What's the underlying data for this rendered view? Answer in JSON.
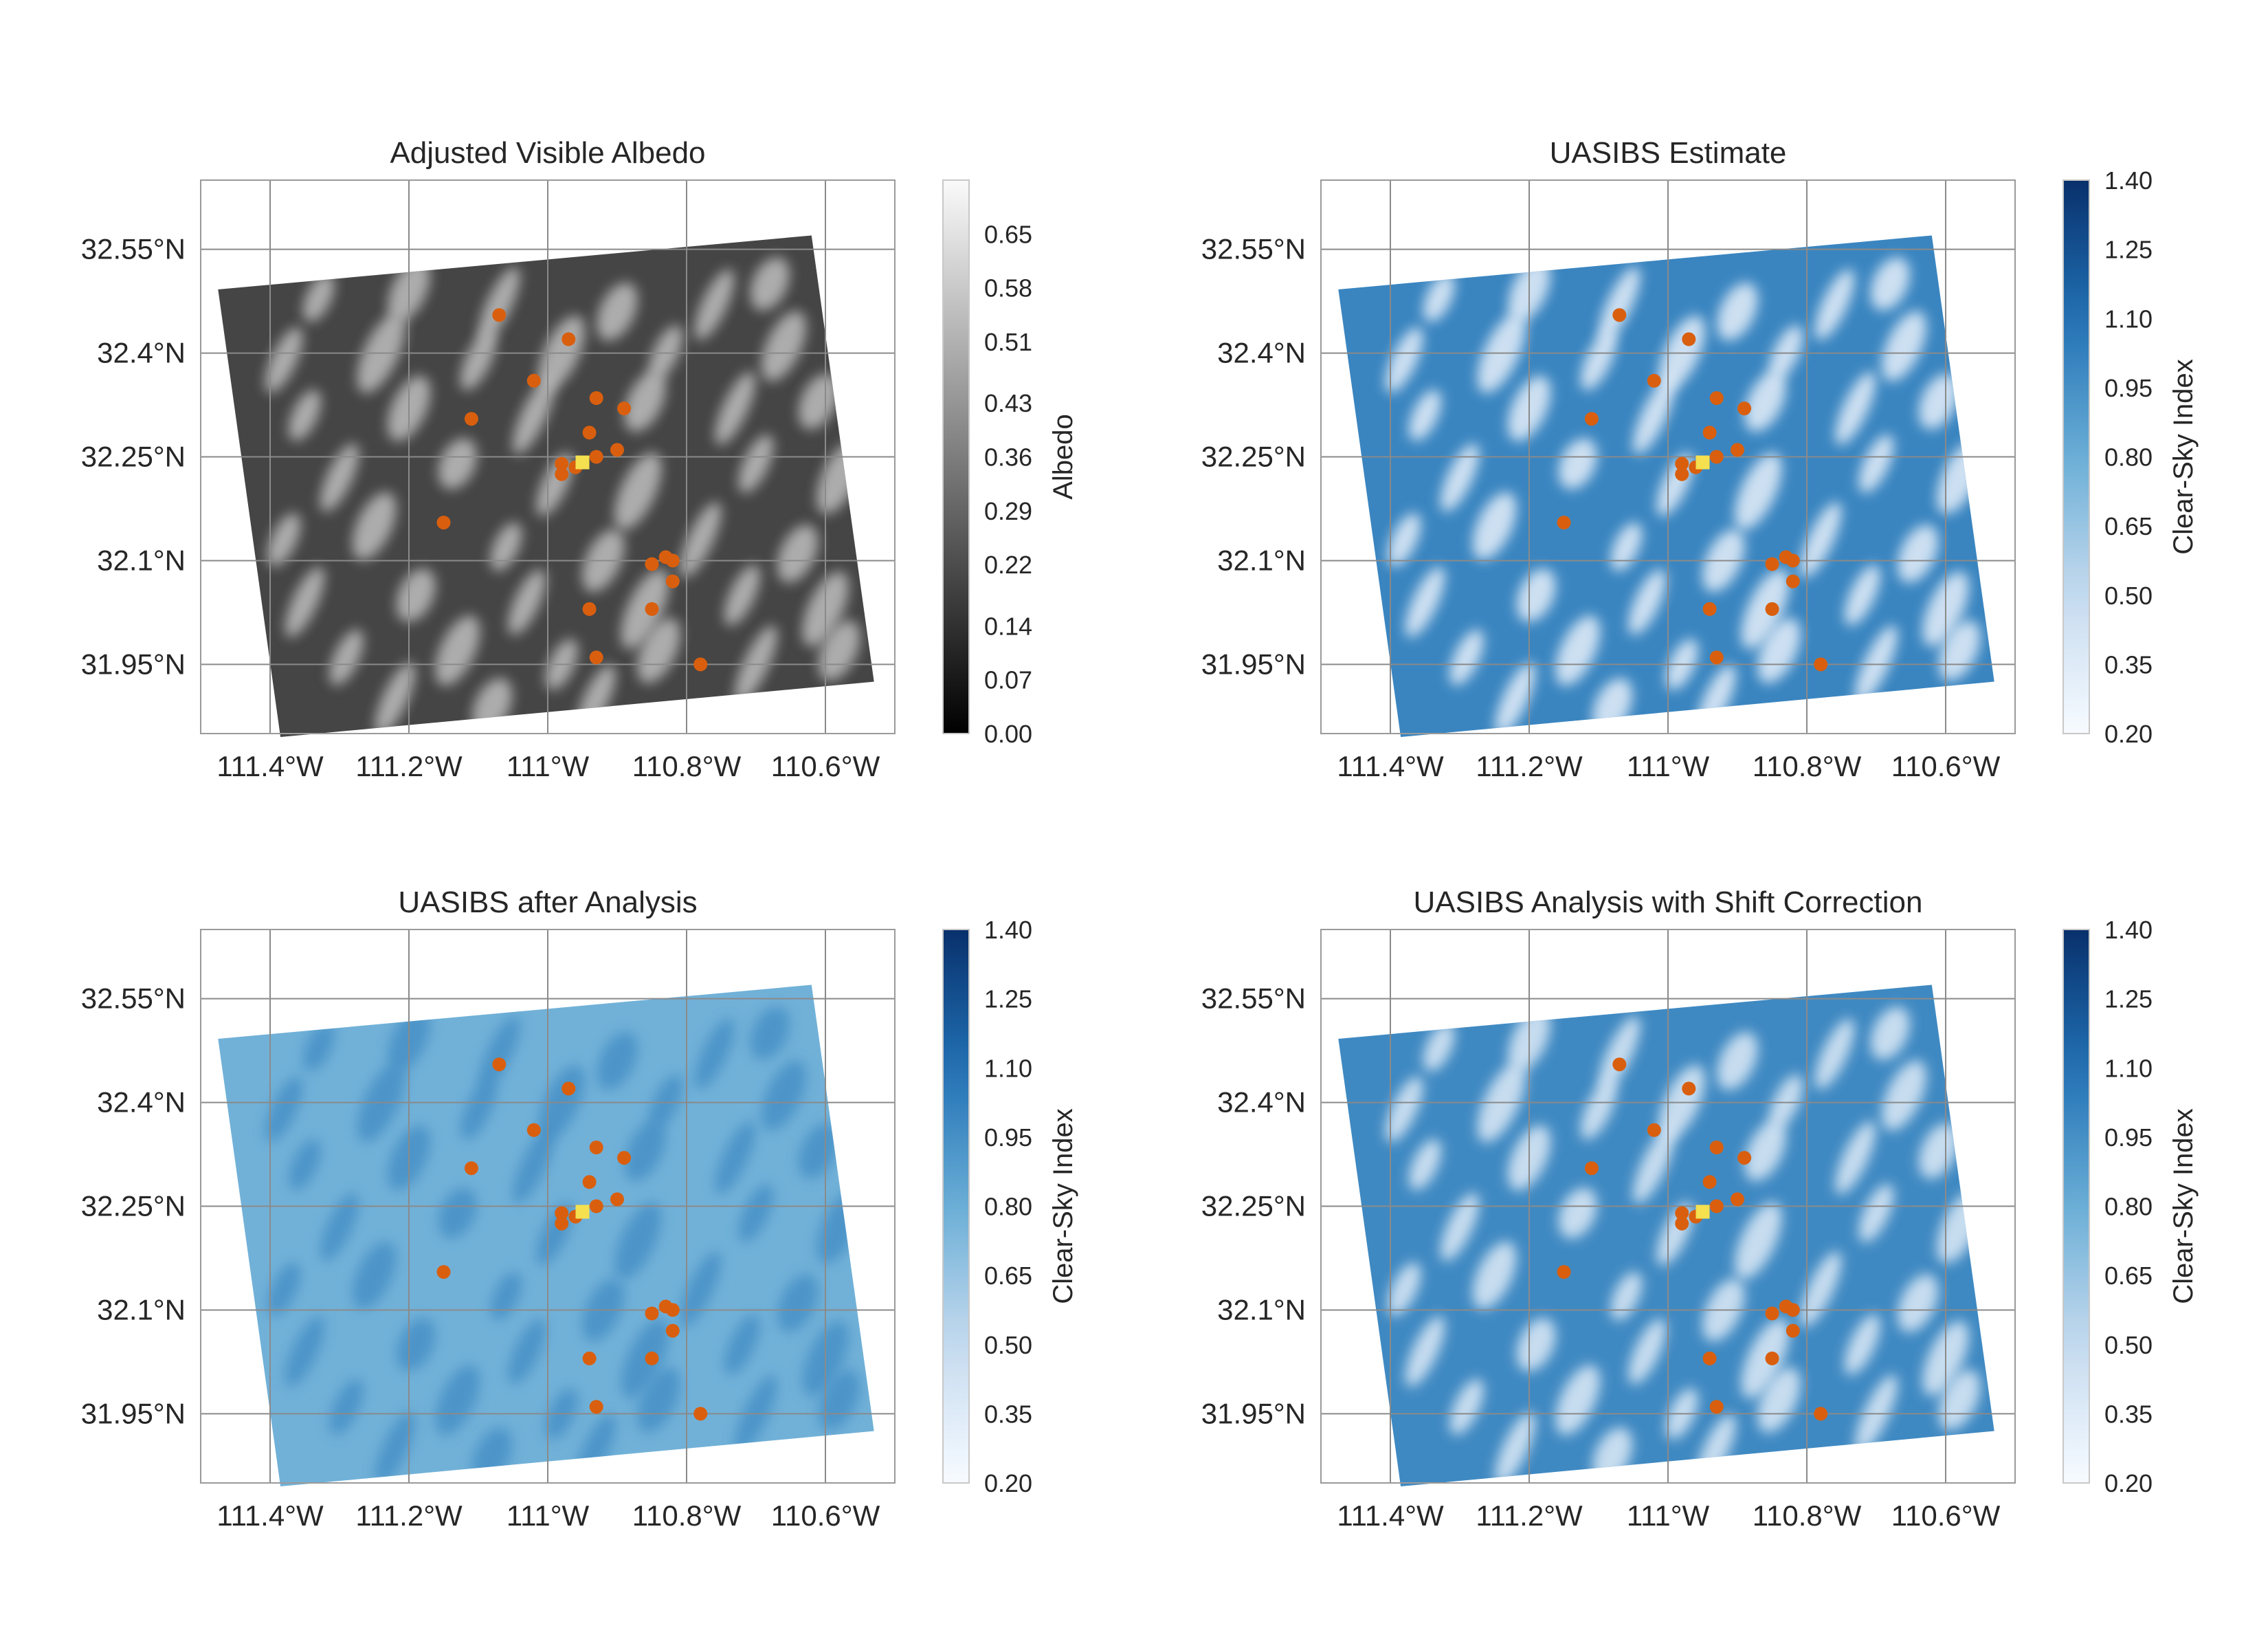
{
  "chart_data": [
    {
      "type": "heatmap",
      "title": "Adjusted Visible Albedo",
      "xticks": [
        "111.4°W",
        "111.2°W",
        "111°W",
        "110.8°W",
        "110.6°W"
      ],
      "yticks": [
        "32.55°N",
        "32.4°N",
        "32.25°N",
        "32.1°N",
        "31.95°N"
      ],
      "colorbar": {
        "label": "Albedo",
        "ticks": [
          "0.00",
          "0.07",
          "0.14",
          "0.22",
          "0.29",
          "0.36",
          "0.43",
          "0.51",
          "0.58",
          "0.65"
        ],
        "range": [
          0.0,
          0.72
        ],
        "colormap": "greys"
      },
      "field": {
        "base_value": 0.2,
        "cloud_value": 0.55
      },
      "grid": true
    },
    {
      "type": "heatmap",
      "title": "UASIBS Estimate",
      "xticks": [
        "111.4°W",
        "111.2°W",
        "111°W",
        "110.8°W",
        "110.6°W"
      ],
      "yticks": [
        "32.55°N",
        "32.4°N",
        "32.25°N",
        "32.1°N",
        "31.95°N"
      ],
      "colorbar": {
        "label": "Clear-Sky Index",
        "ticks": [
          "0.20",
          "0.35",
          "0.50",
          "0.65",
          "0.80",
          "0.95",
          "1.10",
          "1.25",
          "1.40"
        ],
        "range": [
          0.2,
          1.4
        ],
        "colormap": "blues"
      },
      "field": {
        "base_value": 1.0,
        "cloud_value": 0.3
      },
      "grid": true
    },
    {
      "type": "heatmap",
      "title": "UASIBS after Analysis",
      "xticks": [
        "111.4°W",
        "111.2°W",
        "111°W",
        "110.8°W",
        "110.6°W"
      ],
      "yticks": [
        "32.55°N",
        "32.4°N",
        "32.25°N",
        "32.1°N",
        "31.95°N"
      ],
      "colorbar": {
        "label": "Clear-Sky Index",
        "ticks": [
          "0.20",
          "0.35",
          "0.50",
          "0.65",
          "0.80",
          "0.95",
          "1.10",
          "1.25",
          "1.40"
        ],
        "range": [
          0.2,
          1.4
        ],
        "colormap": "blues"
      },
      "field": {
        "base_value": 0.78,
        "cloud_value": 0.95
      },
      "grid": true
    },
    {
      "type": "heatmap",
      "title": "UASIBS Analysis with Shift Correction",
      "xticks": [
        "111.4°W",
        "111.2°W",
        "111°W",
        "110.8°W",
        "110.6°W"
      ],
      "yticks": [
        "32.55°N",
        "32.4°N",
        "32.25°N",
        "32.1°N",
        "31.95°N"
      ],
      "colorbar": {
        "label": "Clear-Sky Index",
        "ticks": [
          "0.20",
          "0.35",
          "0.50",
          "0.65",
          "0.80",
          "0.95",
          "1.10",
          "1.25",
          "1.40"
        ],
        "range": [
          0.2,
          1.4
        ],
        "colormap": "blues"
      },
      "field": {
        "base_value": 0.98,
        "cloud_value": 0.35
      },
      "grid": true
    }
  ],
  "markers": {
    "sensors": {
      "color": "#d95f0e",
      "points": [
        [
          -111.07,
          32.455
        ],
        [
          -110.97,
          32.42
        ],
        [
          -111.02,
          32.36
        ],
        [
          -110.93,
          32.335
        ],
        [
          -110.89,
          32.32
        ],
        [
          -111.11,
          32.305
        ],
        [
          -110.94,
          32.285
        ],
        [
          -110.9,
          32.26
        ],
        [
          -110.93,
          32.25
        ],
        [
          -110.98,
          32.24
        ],
        [
          -110.96,
          32.235
        ],
        [
          -110.98,
          32.225
        ],
        [
          -111.15,
          32.155
        ],
        [
          -110.83,
          32.105
        ],
        [
          -110.82,
          32.1
        ],
        [
          -110.85,
          32.095
        ],
        [
          -110.82,
          32.07
        ],
        [
          -110.94,
          32.03
        ],
        [
          -110.85,
          32.03
        ],
        [
          -110.93,
          31.96
        ],
        [
          -110.78,
          31.95
        ]
      ]
    },
    "reference_site": {
      "color": "#f5e050",
      "point": [
        -110.95,
        32.24
      ]
    }
  },
  "clouds": [
    [
      -111.33,
      32.48
    ],
    [
      -111.2,
      32.49
    ],
    [
      -111.07,
      32.47
    ],
    [
      -110.9,
      32.46
    ],
    [
      -110.76,
      32.47
    ],
    [
      -110.68,
      32.5
    ],
    [
      -111.38,
      32.39
    ],
    [
      -111.24,
      32.4
    ],
    [
      -111.1,
      32.39
    ],
    [
      -110.98,
      32.4
    ],
    [
      -110.83,
      32.4
    ],
    [
      -110.66,
      32.41
    ],
    [
      -111.35,
      32.31
    ],
    [
      -111.2,
      32.32
    ],
    [
      -111.02,
      32.31
    ],
    [
      -110.86,
      32.33
    ],
    [
      -110.73,
      32.32
    ],
    [
      -110.61,
      32.33
    ],
    [
      -111.3,
      32.22
    ],
    [
      -111.13,
      32.24
    ],
    [
      -110.99,
      32.21
    ],
    [
      -110.87,
      32.2
    ],
    [
      -110.7,
      32.24
    ],
    [
      -110.58,
      32.22
    ],
    [
      -111.38,
      32.13
    ],
    [
      -111.25,
      32.15
    ],
    [
      -111.06,
      32.12
    ],
    [
      -110.92,
      32.1
    ],
    [
      -110.78,
      32.13
    ],
    [
      -110.64,
      32.11
    ],
    [
      -111.35,
      32.04
    ],
    [
      -111.19,
      32.05
    ],
    [
      -111.03,
      32.04
    ],
    [
      -110.86,
      32.03
    ],
    [
      -110.72,
      32.05
    ],
    [
      -110.6,
      32.03
    ],
    [
      -111.29,
      31.96
    ],
    [
      -111.13,
      31.97
    ],
    [
      -110.98,
      31.95
    ],
    [
      -110.84,
      31.97
    ],
    [
      -110.7,
      31.95
    ],
    [
      -110.58,
      31.97
    ],
    [
      -111.22,
      31.9
    ],
    [
      -111.08,
      31.89
    ],
    [
      -110.93,
      31.9
    ]
  ]
}
